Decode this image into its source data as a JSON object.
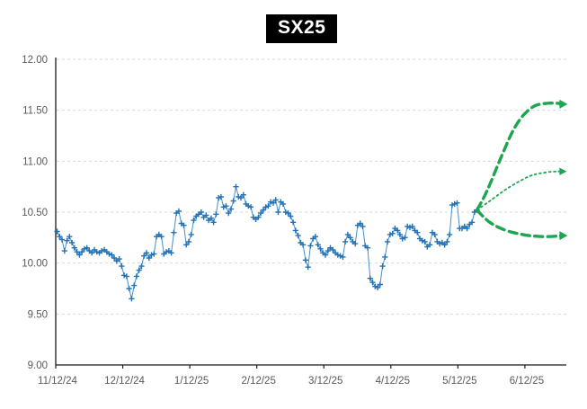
{
  "chart": {
    "title": "SX25"
  },
  "colors": {
    "background": "#ffffff",
    "history_line": "#4a8fc7",
    "history_marker": "#2272b8",
    "projection_green": "#1ca64f",
    "grid": "#d9d9d9",
    "axis": "#1a1a1a",
    "tick_label": "#595959",
    "title_bg": "#000000",
    "title_fg": "#ffffff"
  },
  "chart_data": {
    "type": "line",
    "title": "SX25",
    "xlabel": "",
    "ylabel": "",
    "ylim": [
      9.0,
      12.0
    ],
    "ytick_interval": 0.5,
    "ytick_labels": [
      "12.00",
      "11.50",
      "11.00",
      "10.50",
      "10.00",
      "9.50",
      "9.00"
    ],
    "xtick_labels": [
      "11/12/24",
      "12/12/24",
      "1/12/25",
      "2/12/25",
      "3/12/25",
      "4/12/25",
      "5/12/25",
      "6/12/25"
    ],
    "xlim_months": [
      0,
      7.618
    ],
    "grid": "horizontal-dashed",
    "legend_position": "none",
    "series": [
      {
        "name": "SX25 daily history",
        "style": "solid line with cross markers",
        "color": "#2272b8",
        "x_start_month": 0.02,
        "x_end_month": 6.285,
        "values": [
          10.31,
          10.26,
          10.23,
          10.12,
          10.22,
          10.26,
          10.2,
          10.15,
          10.11,
          10.08,
          10.11,
          10.14,
          10.15,
          10.12,
          10.1,
          10.13,
          10.11,
          10.1,
          10.12,
          10.13,
          10.11,
          10.09,
          10.08,
          10.05,
          10.02,
          10.04,
          9.97,
          9.88,
          9.87,
          9.75,
          9.65,
          9.78,
          9.87,
          9.93,
          9.97,
          10.07,
          10.1,
          10.05,
          10.08,
          10.09,
          10.26,
          10.28,
          10.26,
          10.09,
          10.11,
          10.12,
          10.1,
          10.3,
          10.49,
          10.51,
          10.39,
          10.37,
          10.18,
          10.21,
          10.28,
          10.42,
          10.46,
          10.48,
          10.5,
          10.45,
          10.47,
          10.42,
          10.44,
          10.4,
          10.48,
          10.64,
          10.65,
          10.55,
          10.56,
          10.49,
          10.53,
          10.61,
          10.75,
          10.65,
          10.64,
          10.67,
          10.58,
          10.56,
          10.55,
          10.45,
          10.43,
          10.45,
          10.49,
          10.52,
          10.55,
          10.56,
          10.6,
          10.59,
          10.62,
          10.5,
          10.6,
          10.58,
          10.5,
          10.49,
          10.46,
          10.4,
          10.32,
          10.27,
          10.2,
          10.18,
          10.03,
          9.96,
          10.17,
          10.24,
          10.26,
          10.18,
          10.14,
          10.1,
          10.08,
          10.12,
          10.15,
          10.13,
          10.1,
          10.08,
          10.07,
          10.06,
          10.21,
          10.28,
          10.25,
          10.21,
          10.19,
          10.37,
          10.39,
          10.36,
          10.17,
          10.15,
          9.85,
          9.81,
          9.77,
          9.76,
          9.79,
          9.97,
          10.06,
          10.21,
          10.28,
          10.29,
          10.34,
          10.32,
          10.28,
          10.24,
          10.25,
          10.36,
          10.35,
          10.36,
          10.32,
          10.3,
          10.24,
          10.22,
          10.21,
          10.16,
          10.18,
          10.3,
          10.28,
          10.21,
          10.19,
          10.2,
          10.18,
          10.21,
          10.28,
          10.57,
          10.58,
          10.59,
          10.34,
          10.34,
          10.36,
          10.34,
          10.38,
          10.4,
          10.5,
          10.52
        ]
      },
      {
        "name": "projection scenario high",
        "style": "thick dashed curve with right arrow",
        "color": "#1ca64f",
        "end_value": 11.56,
        "points_month_value": [
          [
            6.285,
            10.52
          ],
          [
            6.38,
            10.63
          ],
          [
            6.49,
            10.79
          ],
          [
            6.6,
            10.97
          ],
          [
            6.71,
            11.14
          ],
          [
            6.81,
            11.29
          ],
          [
            6.92,
            11.41
          ],
          [
            7.03,
            11.49
          ],
          [
            7.13,
            11.54
          ],
          [
            7.21,
            11.56
          ],
          [
            7.35,
            11.57
          ],
          [
            7.48,
            11.57
          ],
          [
            7.57,
            11.56
          ]
        ]
      },
      {
        "name": "projection scenario central",
        "style": "thin dotted line with right arrow",
        "color": "#1ca64f",
        "end_value": 10.9,
        "points_month_value": [
          [
            6.285,
            10.52
          ],
          [
            6.48,
            10.61
          ],
          [
            6.68,
            10.71
          ],
          [
            6.88,
            10.79
          ],
          [
            7.08,
            10.86
          ],
          [
            7.21,
            10.88
          ],
          [
            7.41,
            10.9
          ],
          [
            7.57,
            10.9
          ]
        ]
      },
      {
        "name": "projection scenario low",
        "style": "thick dashed curve with right arrow",
        "color": "#1ca64f",
        "end_value": 10.27,
        "points_month_value": [
          [
            6.285,
            10.52
          ],
          [
            6.41,
            10.43
          ],
          [
            6.54,
            10.37
          ],
          [
            6.71,
            10.32
          ],
          [
            6.88,
            10.29
          ],
          [
            7.05,
            10.27
          ],
          [
            7.21,
            10.26
          ],
          [
            7.4,
            10.26
          ],
          [
            7.57,
            10.27
          ]
        ]
      }
    ]
  }
}
